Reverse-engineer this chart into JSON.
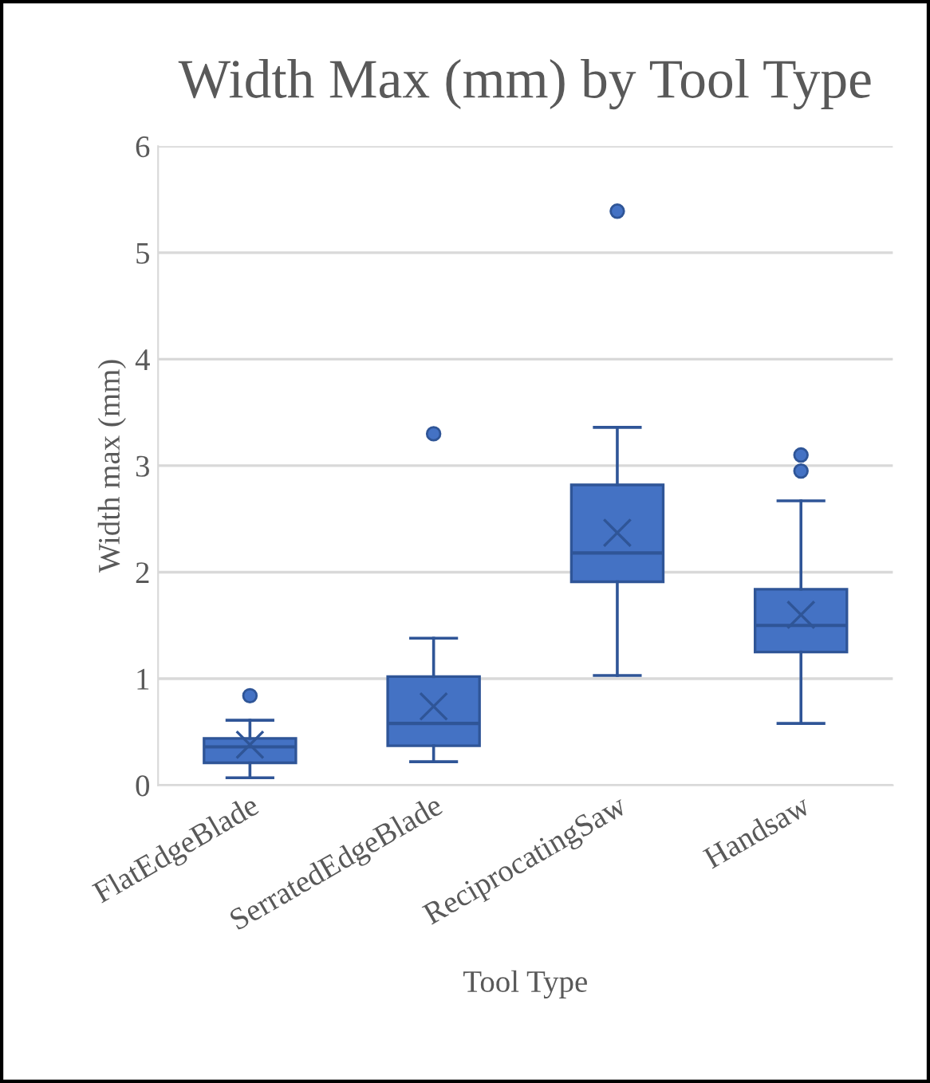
{
  "chart_data": {
    "type": "box",
    "title": "Width Max (mm) by Tool Type",
    "xlabel": "Tool Type",
    "ylabel": "Width max (mm)",
    "categories": [
      "FlatEdgeBlade",
      "SerratedEdgeBlade",
      "ReciprocatingSaw",
      "Handsaw"
    ],
    "color": "#4472c4",
    "boxes": [
      {
        "low": 0.07,
        "q1": 0.21,
        "median": 0.36,
        "q3": 0.44,
        "high": 0.61,
        "mean": 0.38,
        "outliers": [
          0.84
        ]
      },
      {
        "low": 0.22,
        "q1": 0.37,
        "median": 0.58,
        "q3": 1.02,
        "high": 1.38,
        "mean": 0.74,
        "outliers": [
          3.3
        ]
      },
      {
        "low": 1.03,
        "q1": 1.91,
        "median": 2.18,
        "q3": 2.82,
        "high": 3.36,
        "mean": 2.37,
        "outliers": [
          5.39
        ]
      },
      {
        "low": 0.58,
        "q1": 1.25,
        "median": 1.5,
        "q3": 1.84,
        "high": 2.67,
        "mean": 1.6,
        "outliers": [
          2.95,
          3.1
        ]
      }
    ],
    "ylim": [
      0,
      6
    ],
    "yticks": [
      0,
      1,
      2,
      3,
      4,
      5,
      6
    ],
    "grid": "y",
    "legend": false
  }
}
